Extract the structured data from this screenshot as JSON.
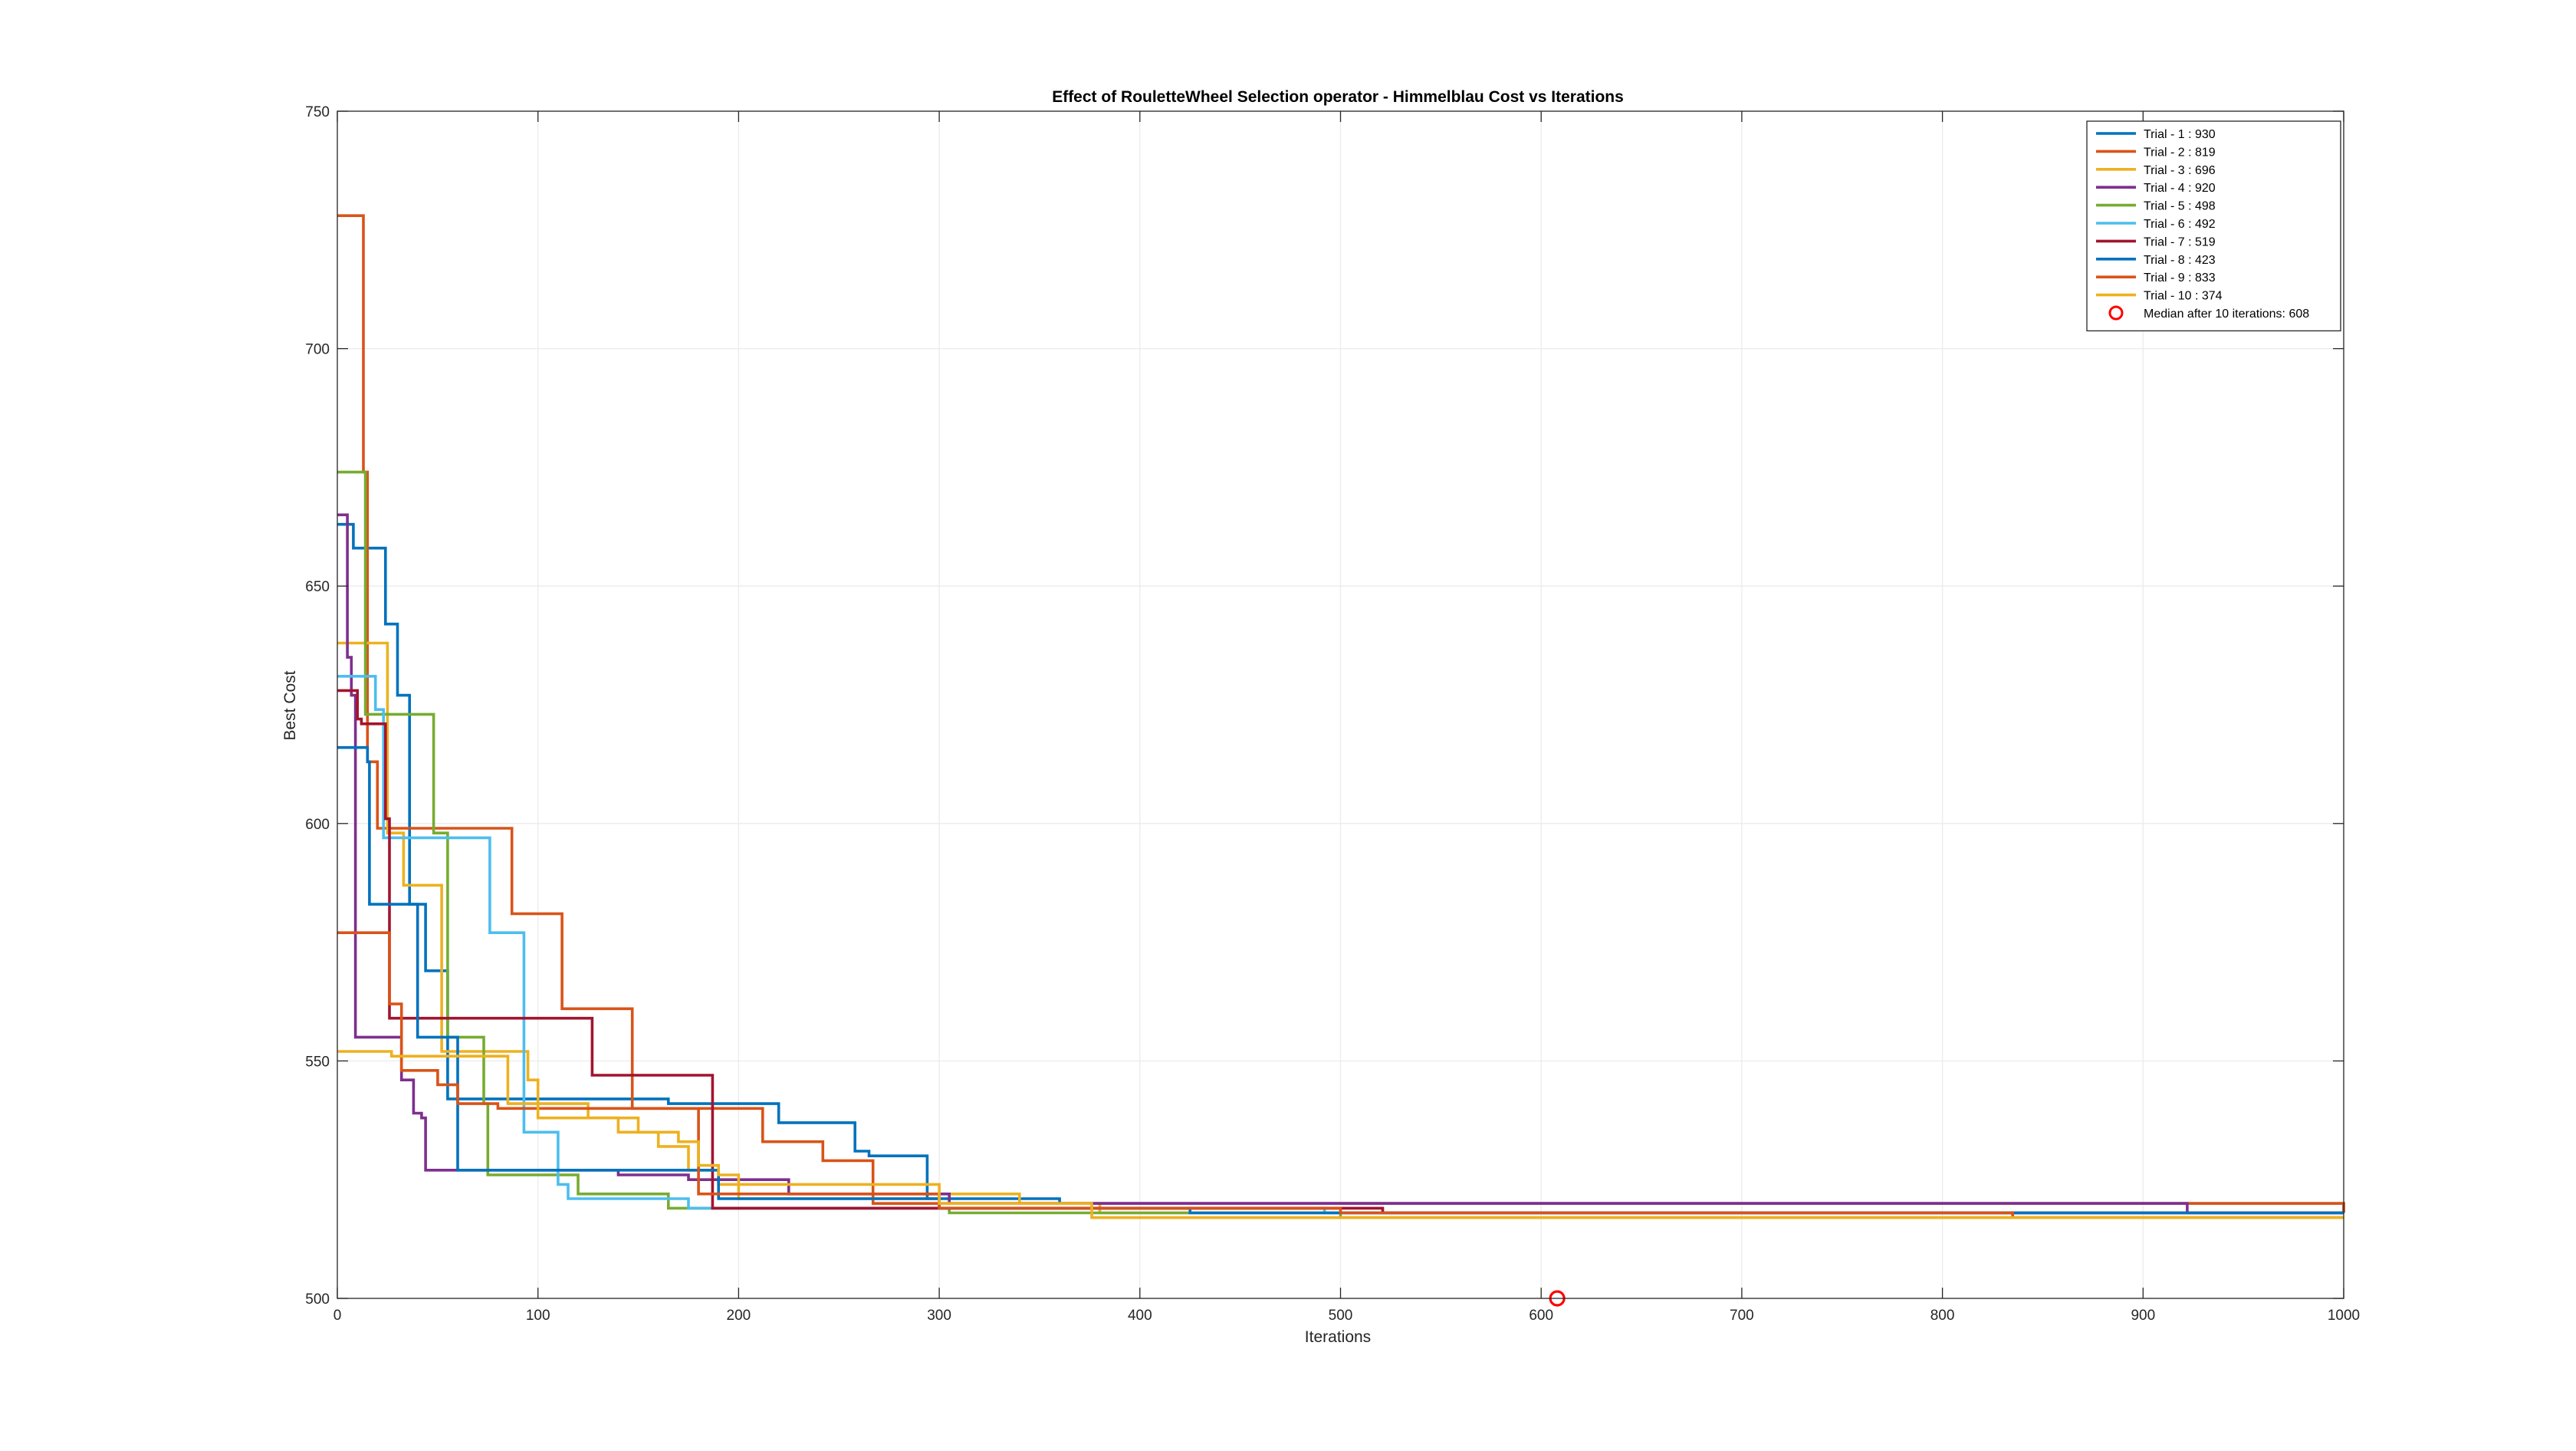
{
  "chart_data": {
    "type": "line",
    "title": "Effect of RouletteWheel Selection operator - Himmelblau Cost vs Iterations",
    "xlabel": "Iterations",
    "ylabel": "Best Cost",
    "xlim": [
      0,
      1000
    ],
    "ylim": [
      500,
      750
    ],
    "xticks": [
      "0",
      "100",
      "200",
      "300",
      "400",
      "500",
      "600",
      "700",
      "800",
      "900",
      "1000"
    ],
    "yticks": [
      "500",
      "550",
      "600",
      "650",
      "700",
      "750"
    ],
    "grid": true,
    "legend_location": "top-right",
    "series": [
      {
        "name": "Trial - 1 : 930",
        "color": "#0072BD",
        "x": [
          0,
          6,
          8,
          22,
          24,
          30,
          32,
          36,
          44,
          48,
          55,
          57,
          135,
          165,
          168,
          220,
          222,
          255,
          258,
          262,
          265,
          290,
          294,
          305,
          330,
          360,
          380,
          400,
          420,
          1000
        ],
        "y": [
          663,
          663,
          658,
          658,
          642,
          627,
          627,
          583,
          569,
          569,
          542,
          542,
          542,
          541,
          541,
          537,
          537,
          537,
          531,
          531,
          530,
          530,
          521,
          521,
          521,
          520,
          520,
          520,
          520,
          518
        ]
      },
      {
        "name": "Trial - 2 : 819",
        "color": "#D95319",
        "x": [
          0,
          11,
          13,
          15,
          20,
          24,
          26,
          50,
          60,
          85,
          87,
          110,
          112,
          145,
          147,
          210,
          212,
          240,
          242,
          265,
          267,
          400,
          1000
        ],
        "y": [
          728,
          728,
          674,
          613,
          599,
          599,
          599,
          599,
          599,
          599,
          581,
          581,
          561,
          561,
          540,
          540,
          533,
          533,
          529,
          529,
          520,
          520,
          518
        ]
      },
      {
        "name": "Trial - 3 : 696",
        "color": "#EDB120",
        "x": [
          0,
          23,
          25,
          33,
          40,
          47,
          52,
          95,
          100,
          125,
          130,
          140,
          150,
          160,
          175,
          190,
          200,
          203,
          210,
          290,
          300,
          340,
          345,
          380,
          1000
        ],
        "y": [
          638,
          638,
          598,
          587,
          587,
          587,
          552,
          546,
          541,
          538,
          538,
          535,
          535,
          532,
          527,
          524,
          521,
          521,
          521,
          521,
          522,
          520,
          520,
          518,
          518
        ]
      },
      {
        "name": "Trial - 4 : 920",
        "color": "#7E2F8E",
        "x": [
          0,
          3,
          5,
          7,
          9,
          11,
          30,
          32,
          38,
          42,
          44,
          80,
          90,
          130,
          140,
          175,
          195,
          225,
          230,
          240,
          250,
          300,
          305,
          400,
          920,
          922,
          1000
        ],
        "y": [
          665,
          665,
          635,
          627,
          555,
          555,
          555,
          546,
          539,
          538,
          527,
          527,
          527,
          527,
          526,
          525,
          525,
          522,
          522,
          522,
          522,
          522,
          520,
          520,
          520,
          518,
          518
        ]
      },
      {
        "name": "Trial - 5 : 498",
        "color": "#77AC30",
        "x": [
          0,
          10,
          12,
          14,
          20,
          46,
          48,
          52,
          55,
          70,
          72,
          73,
          75,
          85,
          120,
          125,
          150,
          160,
          162,
          165,
          300,
          305,
          400,
          498,
          500,
          1000
        ],
        "y": [
          674,
          674,
          674,
          623,
          623,
          623,
          598,
          598,
          555,
          555,
          555,
          541,
          526,
          526,
          522,
          522,
          522,
          522,
          522,
          519,
          519,
          518,
          518,
          518,
          517,
          517
        ]
      },
      {
        "name": "Trial - 6 : 492",
        "color": "#4DBEEE",
        "x": [
          0,
          17,
          19,
          23,
          55,
          70,
          74,
          76,
          90,
          93,
          107,
          110,
          115,
          135,
          170,
          175,
          190,
          300,
          400,
          492,
          495,
          1000
        ],
        "y": [
          631,
          631,
          624,
          597,
          597,
          597,
          597,
          577,
          577,
          535,
          535,
          524,
          521,
          521,
          521,
          519,
          519,
          519,
          519,
          518,
          518,
          518
        ]
      },
      {
        "name": "Trial - 7 : 519",
        "color": "#A2142F",
        "x": [
          0,
          8,
          10,
          12,
          22,
          24,
          26,
          40,
          50,
          100,
          125,
          127,
          155,
          170,
          185,
          187,
          200,
          300,
          400,
          519,
          521,
          1000
        ],
        "y": [
          628,
          628,
          622,
          621,
          621,
          601,
          559,
          559,
          559,
          559,
          559,
          547,
          547,
          547,
          547,
          519,
          519,
          519,
          519,
          519,
          518,
          518
        ]
      },
      {
        "name": "Trial - 8 : 423",
        "color": "#0072BD",
        "x": [
          0,
          13,
          15,
          16,
          38,
          40,
          42,
          60,
          100,
          190,
          200,
          300,
          400,
          423,
          425,
          1000
        ],
        "y": [
          616,
          616,
          613,
          583,
          583,
          555,
          555,
          527,
          527,
          521,
          521,
          519,
          519,
          519,
          518,
          518
        ]
      },
      {
        "name": "Trial - 9 : 833",
        "color": "#D95319",
        "x": [
          0,
          24,
          26,
          32,
          45,
          50,
          60,
          70,
          80,
          100,
          180,
          200,
          300,
          400,
          500,
          833,
          835,
          1000
        ],
        "y": [
          577,
          577,
          562,
          548,
          548,
          545,
          541,
          541,
          540,
          540,
          522,
          522,
          519,
          519,
          518,
          518,
          517,
          517
        ]
      },
      {
        "name": "Trial - 10 : 374",
        "color": "#EDB120",
        "x": [
          0,
          25,
          27,
          48,
          70,
          85,
          100,
          130,
          150,
          170,
          180,
          190,
          200,
          250,
          300,
          374,
          376,
          400,
          420,
          1000
        ],
        "y": [
          552,
          552,
          551,
          551,
          551,
          541,
          538,
          538,
          535,
          533,
          528,
          526,
          524,
          524,
          520,
          520,
          517,
          517,
          517,
          517
        ]
      }
    ],
    "markers": [
      {
        "name": "Median after 10 iterations: 608",
        "color": "#FF0000",
        "shape": "circle",
        "x": 608,
        "y": 500
      }
    ]
  }
}
